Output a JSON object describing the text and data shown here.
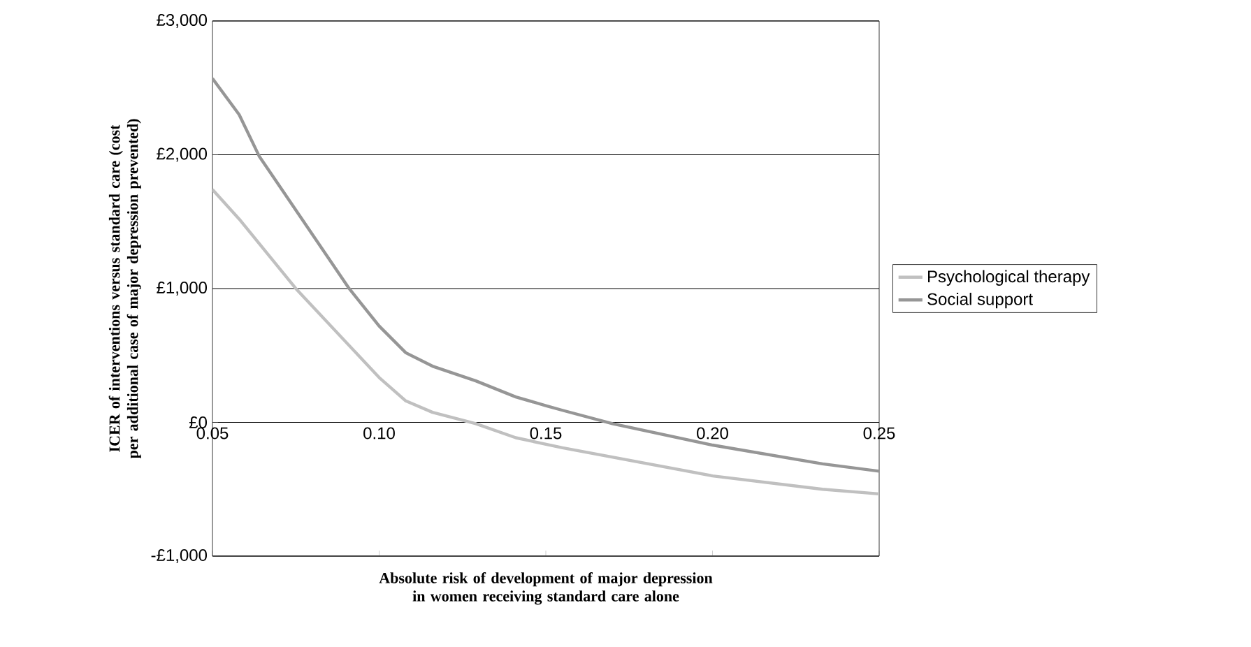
{
  "chart_data": {
    "type": "line",
    "xlabel": "Absolute risk of development of major depression in women receiving standard care alone",
    "ylabel": "ICER of interventions versus standard care (cost per additional case of major depression prevented)",
    "xlim": [
      0.05,
      0.25
    ],
    "xticks": [
      {
        "value": 0.05,
        "label": "0.05"
      },
      {
        "value": 0.1,
        "label": "0.10"
      },
      {
        "value": 0.15,
        "label": "0.15"
      },
      {
        "value": 0.2,
        "label": "0.20"
      },
      {
        "value": 0.25,
        "label": "0.25"
      }
    ],
    "ylim": [
      -1000,
      3000
    ],
    "yticks": [
      {
        "value": -1000,
        "label": "-£1,000"
      },
      {
        "value": 0,
        "label": "£0"
      },
      {
        "value": 1000,
        "label": "£1,000"
      },
      {
        "value": 2000,
        "label": "£2,000"
      },
      {
        "value": 3000,
        "label": "£3,000"
      }
    ],
    "grid": "y",
    "legend": "right",
    "marker": "none",
    "series": [
      {
        "name": "Psychological therapy",
        "color": "#c0c0c0",
        "x": [
          0.05,
          0.058,
          0.075,
          0.1,
          0.108,
          0.116,
          0.129,
          0.141,
          0.155,
          0.2,
          0.233,
          0.25
        ],
        "values": [
          1740,
          1520,
          1000,
          335,
          160,
          75,
          -10,
          -115,
          -190,
          -400,
          -500,
          -535
        ]
      },
      {
        "name": "Social support",
        "color": "#969696",
        "x": [
          0.05,
          0.058,
          0.064,
          0.091,
          0.1,
          0.108,
          0.116,
          0.129,
          0.141,
          0.15,
          0.155,
          0.17,
          0.2,
          0.233,
          0.25
        ],
        "values": [
          2570,
          2300,
          1990,
          1000,
          720,
          520,
          420,
          310,
          190,
          125,
          90,
          -10,
          -170,
          -310,
          -365
        ]
      }
    ]
  }
}
